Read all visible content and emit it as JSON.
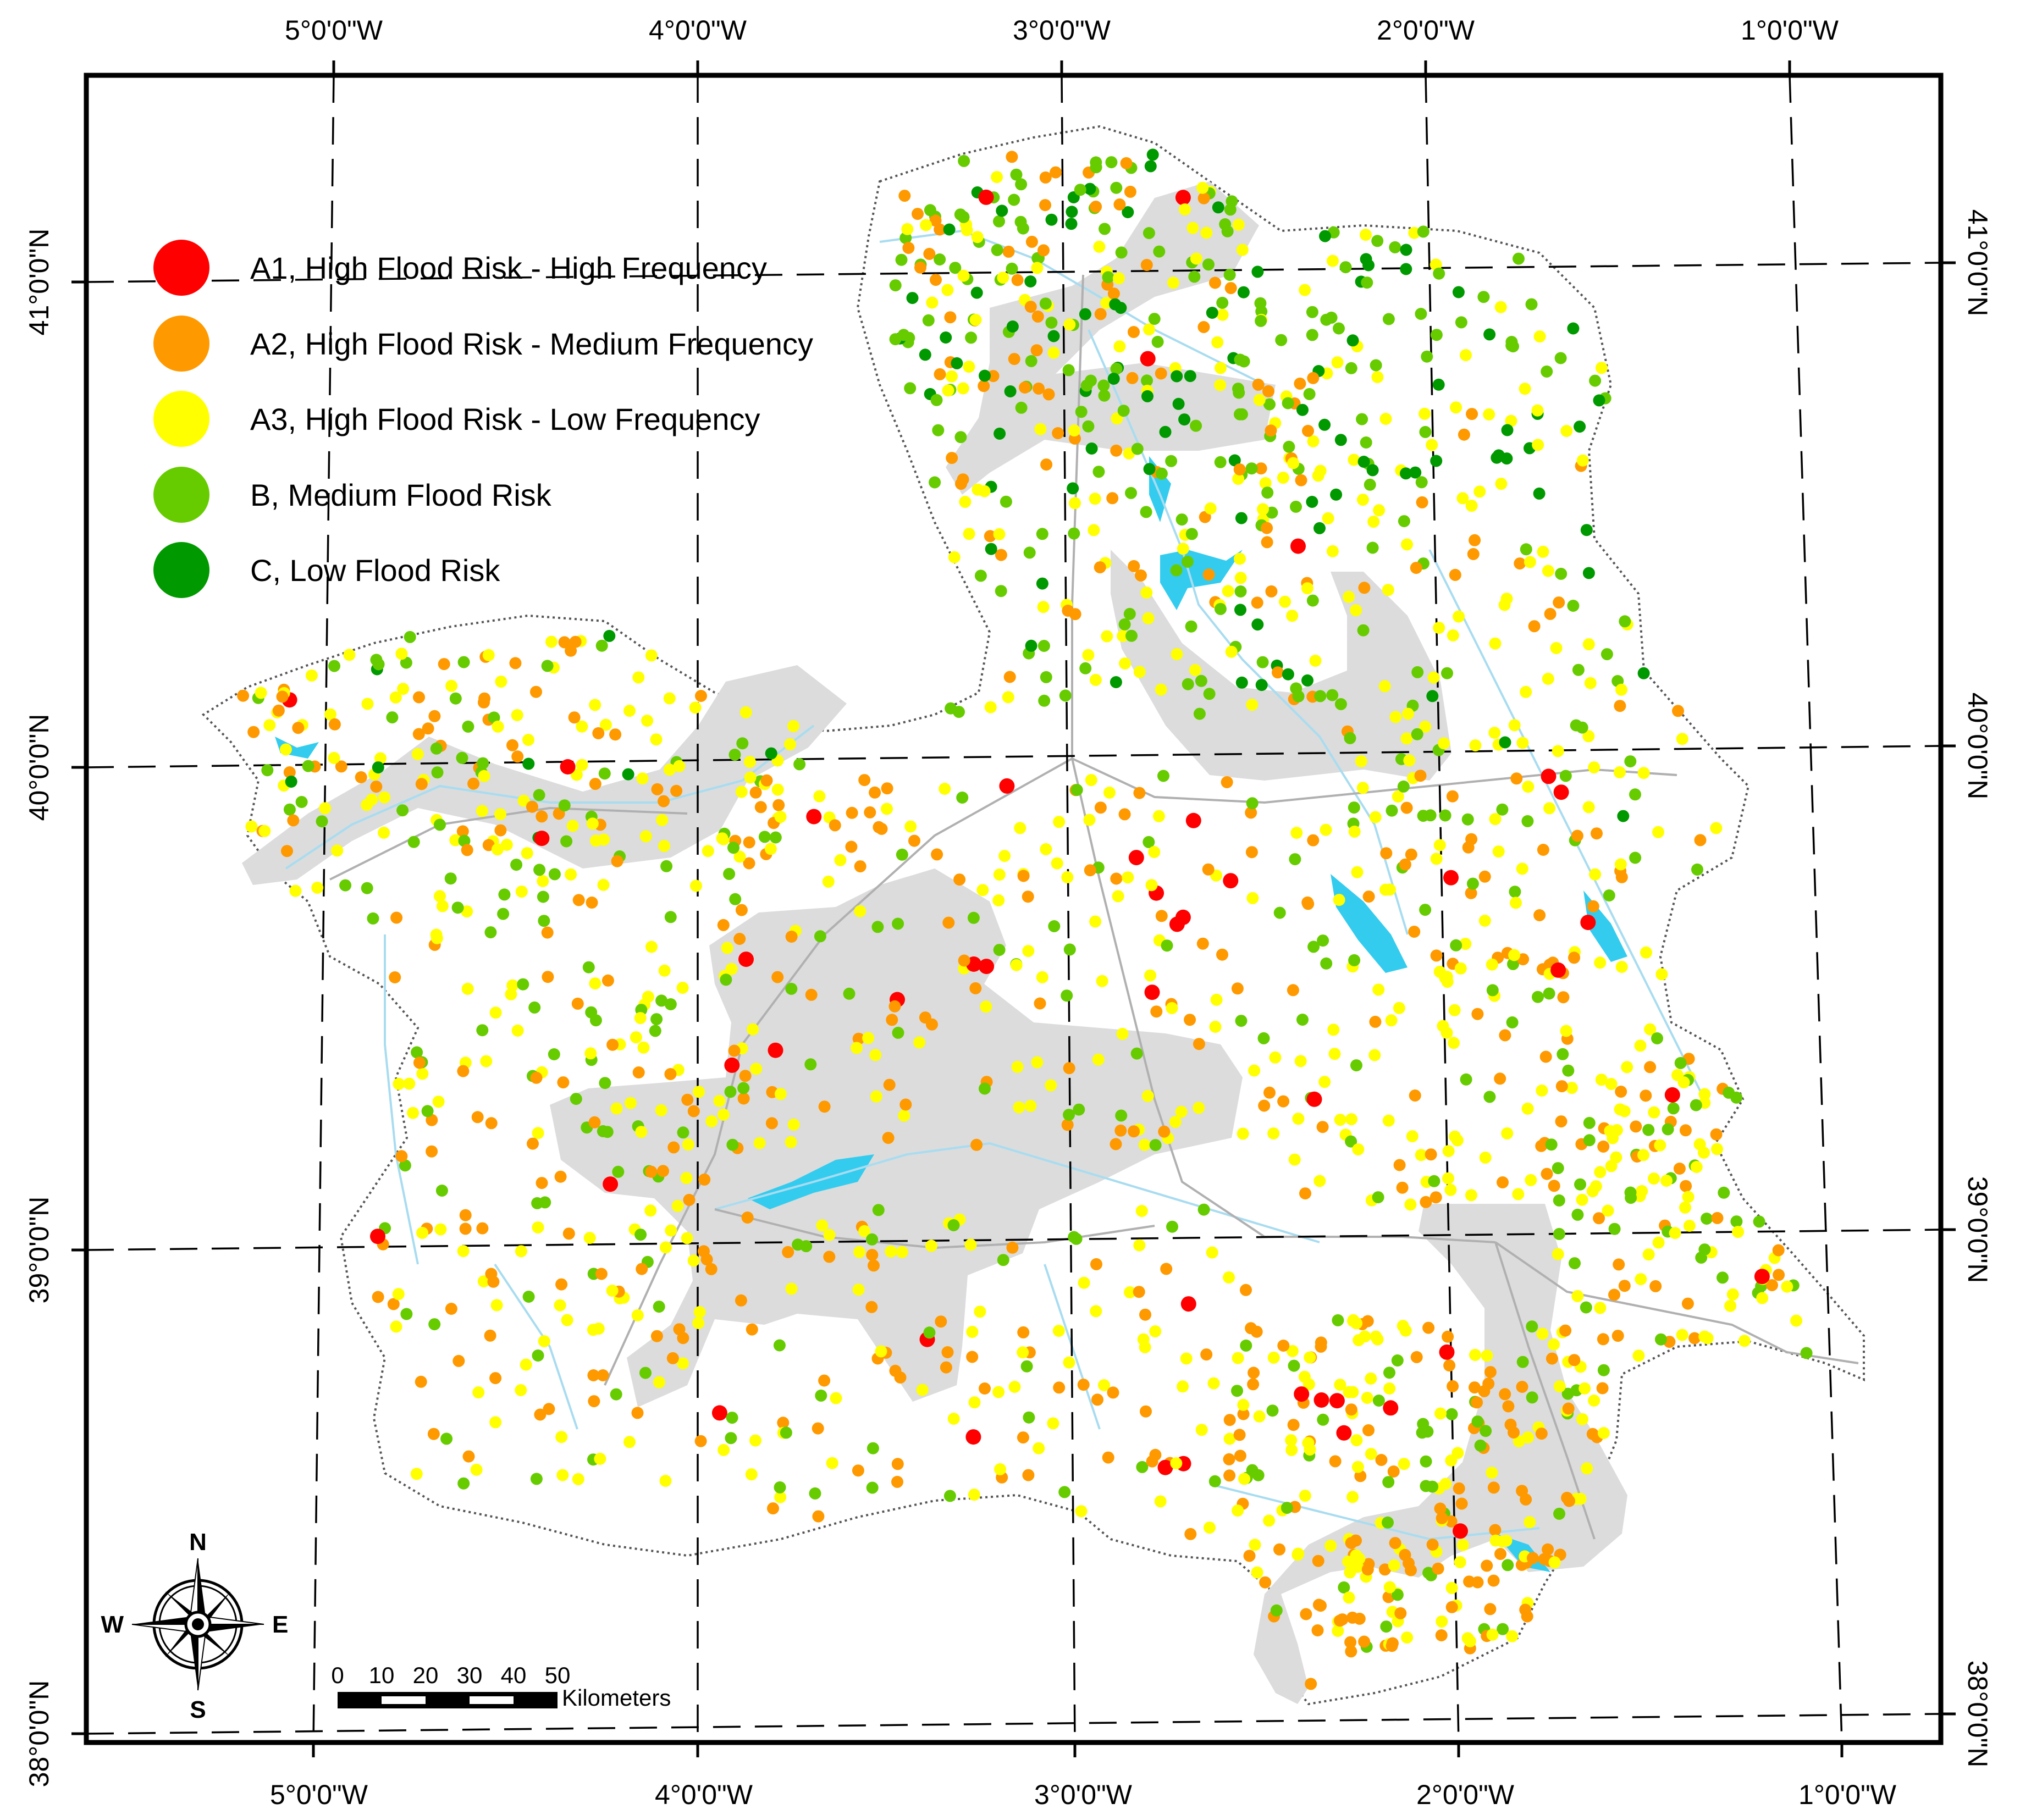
{
  "map": {
    "top_longitude_labels": [
      "5°0'0\"W",
      "4°0'0\"W",
      "3°0'0\"W",
      "2°0'0\"W",
      "1°0'0\"W"
    ],
    "bottom_longitude_labels": [
      "5°0'0\"W",
      "4°0'0\"W",
      "3°0'0\"W",
      "2°0'0\"W",
      "1°0'0\"W"
    ],
    "left_latitude_labels": [
      "41°0'0\"N",
      "40°0'0\"N",
      "39°0'0\"N",
      "38°0'0\"N"
    ],
    "right_latitude_labels": [
      "41°0'0\"N",
      "40°0'0\"N",
      "39°0'0\"N",
      "38°0'0\"N"
    ],
    "colors": {
      "A1": "#ff0000",
      "A2": "#ff9900",
      "A3": "#ffff00",
      "B": "#66cc00",
      "C": "#009900",
      "zone": "#dcdcdc",
      "water": "#33ccee",
      "river": "#a8dcf0",
      "road": "#b0b0b0"
    }
  },
  "legend": {
    "items": [
      {
        "key": "A1",
        "label": "A1, High Flood Risk - High Frequency",
        "color": "#ff0000"
      },
      {
        "key": "A2",
        "label": "A2, High Flood Risk - Medium Frequency",
        "color": "#ff9900"
      },
      {
        "key": "A3",
        "label": "A3, High Flood Risk - Low Frequency",
        "color": "#ffff00"
      },
      {
        "key": "B",
        "label": "B, Medium Flood Risk",
        "color": "#66cc00"
      },
      {
        "key": "C",
        "label": "C, Low Flood Risk",
        "color": "#009900"
      }
    ]
  },
  "compass": {
    "north": "N",
    "south": "S",
    "east": "E",
    "west": "W",
    "icon": "compass-rose-icon"
  },
  "scale_bar": {
    "ticks": [
      "0",
      "10",
      "20",
      "30",
      "40",
      "50"
    ],
    "unit": "Kilometers"
  }
}
